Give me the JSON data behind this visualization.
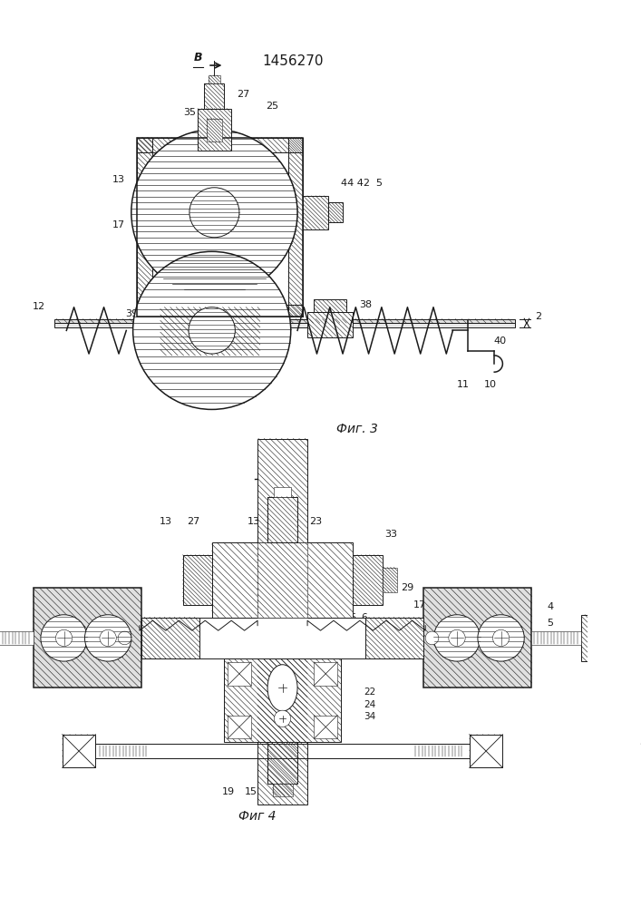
{
  "title": "1456270",
  "fig3_label": "Фиг. 3",
  "fig4_label": "Фиг 4",
  "line_color": "#1a1a1a",
  "title_fontsize": 11,
  "label_fontsize": 8
}
